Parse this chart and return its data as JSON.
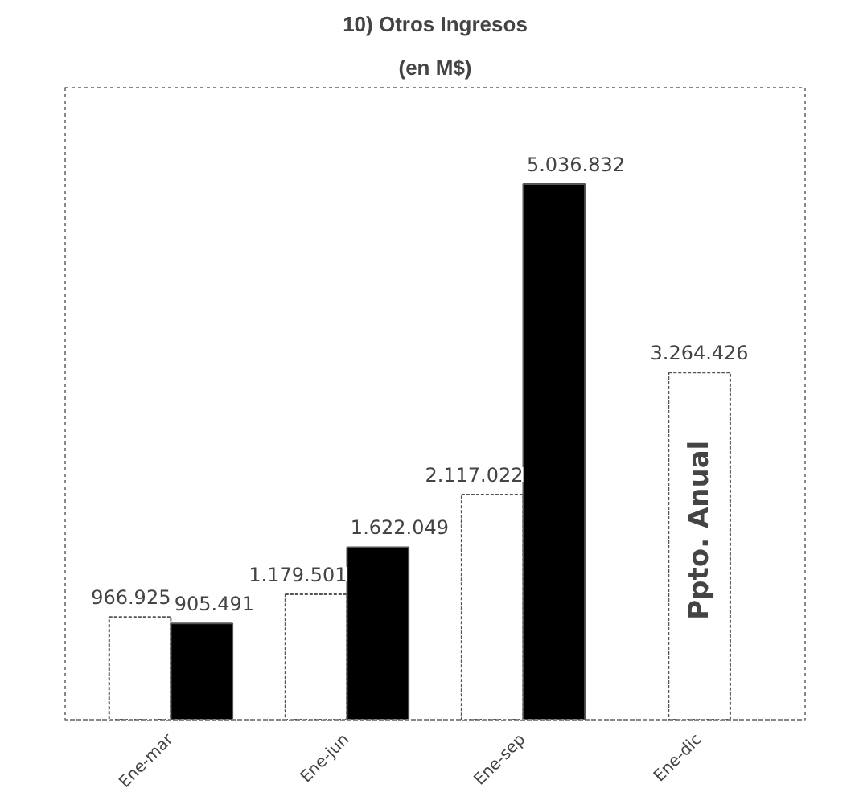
{
  "chart_data": {
    "type": "bar",
    "title": "10) Otros Ingresos",
    "subtitle": "(en M$)",
    "categories": [
      "Ene-mar",
      "Ene-jun",
      "Ene-sep",
      "Ene-dic"
    ],
    "series": [
      {
        "color": "#ffffff",
        "values": [
          966925,
          1179501,
          2117022,
          3264426
        ],
        "value_labels": [
          "966.925",
          "1.179.501",
          "2.117.022",
          "3.264.426"
        ]
      },
      {
        "color": "#000000",
        "values": [
          905491,
          1622049,
          5036832,
          null
        ],
        "value_labels": [
          "905.491",
          "1.622.049",
          "5.036.832",
          null
        ]
      }
    ],
    "annotations": [
      "Ppto. Anual"
    ],
    "grid": false
  }
}
